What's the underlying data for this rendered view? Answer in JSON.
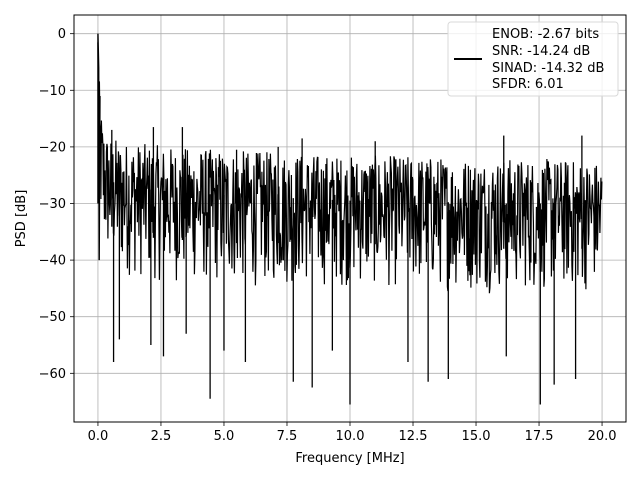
{
  "chart_data": {
    "type": "line",
    "xlabel": "Frequency [MHz]",
    "ylabel": "PSD [dB]",
    "xlim": [
      -0.95,
      20.95
    ],
    "ylim": [
      -68.6,
      3.3
    ],
    "xticks": [
      0,
      2.5,
      5,
      7.5,
      10,
      12.5,
      15,
      17.5,
      20
    ],
    "xtick_labels": [
      "0.0",
      "2.5",
      "5.0",
      "7.5",
      "10.0",
      "12.5",
      "15.0",
      "17.5",
      "20.0"
    ],
    "yticks": [
      0,
      -10,
      -20,
      -30,
      -40,
      -50,
      -60
    ],
    "ytick_labels": [
      "0",
      "−10",
      "−20",
      "−30",
      "−40",
      "−50",
      "−60"
    ],
    "grid": true,
    "legend_position": "top-right",
    "legend": {
      "lines": [
        "ENOB: -2.67 bits",
        "SNR: -14.24 dB",
        "SINAD: -14.32 dB",
        "SFDR: 6.01"
      ]
    },
    "series_color": "#000000",
    "series": [
      {
        "upper_envelope": {
          "x": [
            0,
            0.03,
            0.08,
            0.15,
            0.3,
            0.5,
            1,
            2,
            3,
            5,
            7.5,
            10,
            12.5,
            15,
            17.5,
            20
          ],
          "y": [
            0,
            -6,
            -10,
            -14,
            -17,
            -18,
            -19,
            -19.5,
            -20,
            -20.5,
            -21,
            -21.5,
            -21.5,
            -22,
            -22,
            -22.5
          ]
        },
        "lower_envelope": {
          "x": [
            0,
            0.05,
            0.2,
            0.5,
            1,
            2,
            5,
            10,
            15,
            20
          ],
          "y": [
            -6,
            -33,
            -40,
            -42,
            -43,
            -44,
            -45,
            -45,
            -46,
            -46
          ]
        },
        "dips": [
          {
            "x": 0.62,
            "y": -58
          },
          {
            "x": 0.85,
            "y": -54
          },
          {
            "x": 2.1,
            "y": -55
          },
          {
            "x": 2.6,
            "y": -57
          },
          {
            "x": 3.5,
            "y": -53
          },
          {
            "x": 4.45,
            "y": -64.5
          },
          {
            "x": 5.0,
            "y": -56
          },
          {
            "x": 5.85,
            "y": -58
          },
          {
            "x": 7.75,
            "y": -61.5
          },
          {
            "x": 8.5,
            "y": -62.5
          },
          {
            "x": 9.3,
            "y": -56
          },
          {
            "x": 10.0,
            "y": -65.5
          },
          {
            "x": 12.3,
            "y": -58
          },
          {
            "x": 13.1,
            "y": -61.5
          },
          {
            "x": 13.9,
            "y": -61
          },
          {
            "x": 16.2,
            "y": -57
          },
          {
            "x": 17.55,
            "y": -65.5
          },
          {
            "x": 18.1,
            "y": -62
          },
          {
            "x": 18.95,
            "y": -61
          }
        ],
        "peaks": [
          {
            "x": 0.55,
            "y": -17
          },
          {
            "x": 2.2,
            "y": -16.5
          },
          {
            "x": 3.35,
            "y": -16.5
          },
          {
            "x": 5.5,
            "y": -20.5
          },
          {
            "x": 7.15,
            "y": -20
          },
          {
            "x": 8.1,
            "y": -18.5
          },
          {
            "x": 11.0,
            "y": -19
          },
          {
            "x": 16.1,
            "y": -18
          },
          {
            "x": 19.2,
            "y": -18
          }
        ]
      }
    ]
  }
}
